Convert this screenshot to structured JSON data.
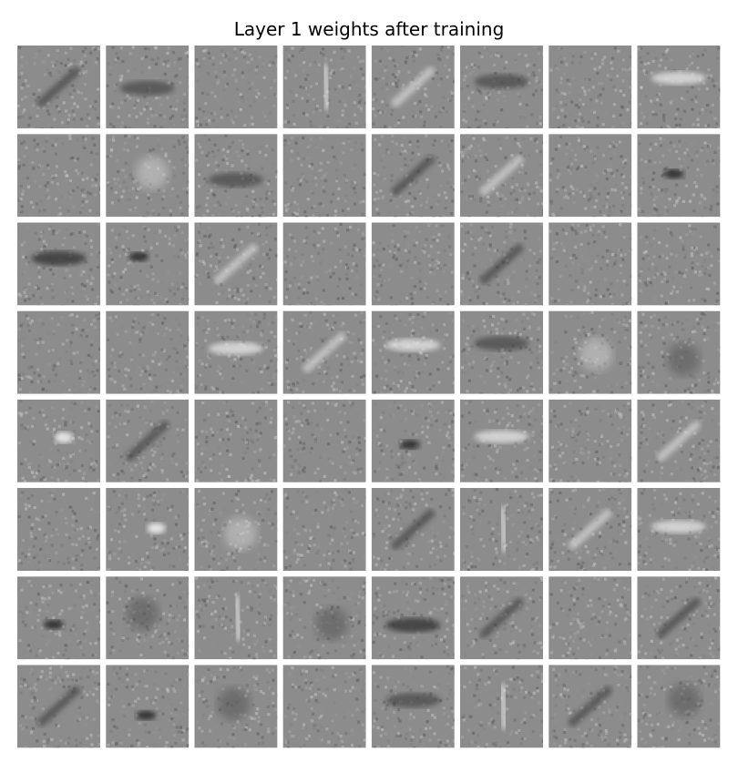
{
  "chart_data": {
    "type": "heatmap",
    "title": "Layer 1 weights after training",
    "rows": 8,
    "cols": 8,
    "tile_resolution": [
      28,
      28
    ],
    "colormap": "gray",
    "axes_visible": false,
    "tiles": [
      {
        "row": 0,
        "col": 0,
        "pattern": "diagonal-stroke"
      },
      {
        "row": 0,
        "col": 1,
        "pattern": "horizontal-band"
      },
      {
        "row": 0,
        "col": 2,
        "pattern": "diffuse"
      },
      {
        "row": 0,
        "col": 3,
        "pattern": "vertical-light-stroke"
      },
      {
        "row": 0,
        "col": 4,
        "pattern": "diagonal-stroke"
      },
      {
        "row": 0,
        "col": 5,
        "pattern": "horizontal-band"
      },
      {
        "row": 0,
        "col": 6,
        "pattern": "diffuse"
      },
      {
        "row": 0,
        "col": 7,
        "pattern": "horizontal-light-band"
      },
      {
        "row": 1,
        "col": 0,
        "pattern": "diffuse"
      },
      {
        "row": 1,
        "col": 1,
        "pattern": "blob"
      },
      {
        "row": 1,
        "col": 2,
        "pattern": "horizontal-band"
      },
      {
        "row": 1,
        "col": 3,
        "pattern": "diffuse"
      },
      {
        "row": 1,
        "col": 4,
        "pattern": "diagonal-stroke"
      },
      {
        "row": 1,
        "col": 5,
        "pattern": "diagonal-stroke"
      },
      {
        "row": 1,
        "col": 6,
        "pattern": "diffuse"
      },
      {
        "row": 1,
        "col": 7,
        "pattern": "dark-spot"
      },
      {
        "row": 2,
        "col": 0,
        "pattern": "horizontal-dark-band"
      },
      {
        "row": 2,
        "col": 1,
        "pattern": "dark-spot"
      },
      {
        "row": 2,
        "col": 2,
        "pattern": "diagonal-stroke"
      },
      {
        "row": 2,
        "col": 3,
        "pattern": "diffuse"
      },
      {
        "row": 2,
        "col": 4,
        "pattern": "diffuse"
      },
      {
        "row": 2,
        "col": 5,
        "pattern": "diagonal-stroke"
      },
      {
        "row": 2,
        "col": 6,
        "pattern": "diffuse"
      },
      {
        "row": 2,
        "col": 7,
        "pattern": "diffuse"
      },
      {
        "row": 3,
        "col": 0,
        "pattern": "diffuse"
      },
      {
        "row": 3,
        "col": 1,
        "pattern": "diffuse"
      },
      {
        "row": 3,
        "col": 2,
        "pattern": "horizontal-light-band"
      },
      {
        "row": 3,
        "col": 3,
        "pattern": "diagonal-stroke"
      },
      {
        "row": 3,
        "col": 4,
        "pattern": "horizontal-light-band"
      },
      {
        "row": 3,
        "col": 5,
        "pattern": "horizontal-band"
      },
      {
        "row": 3,
        "col": 6,
        "pattern": "blob"
      },
      {
        "row": 3,
        "col": 7,
        "pattern": "blob"
      },
      {
        "row": 4,
        "col": 0,
        "pattern": "light-spot"
      },
      {
        "row": 4,
        "col": 1,
        "pattern": "diagonal-stroke"
      },
      {
        "row": 4,
        "col": 2,
        "pattern": "diffuse"
      },
      {
        "row": 4,
        "col": 3,
        "pattern": "diffuse"
      },
      {
        "row": 4,
        "col": 4,
        "pattern": "dark-spot"
      },
      {
        "row": 4,
        "col": 5,
        "pattern": "horizontal-light-band"
      },
      {
        "row": 4,
        "col": 6,
        "pattern": "diffuse"
      },
      {
        "row": 4,
        "col": 7,
        "pattern": "diagonal-stroke"
      },
      {
        "row": 5,
        "col": 0,
        "pattern": "diffuse"
      },
      {
        "row": 5,
        "col": 1,
        "pattern": "light-spot"
      },
      {
        "row": 5,
        "col": 2,
        "pattern": "blob"
      },
      {
        "row": 5,
        "col": 3,
        "pattern": "diffuse"
      },
      {
        "row": 5,
        "col": 4,
        "pattern": "diagonal-stroke"
      },
      {
        "row": 5,
        "col": 5,
        "pattern": "vertical-light-stroke"
      },
      {
        "row": 5,
        "col": 6,
        "pattern": "diagonal-stroke"
      },
      {
        "row": 5,
        "col": 7,
        "pattern": "horizontal-light-band"
      },
      {
        "row": 6,
        "col": 0,
        "pattern": "dark-spot"
      },
      {
        "row": 6,
        "col": 1,
        "pattern": "blob"
      },
      {
        "row": 6,
        "col": 2,
        "pattern": "vertical-light-stroke"
      },
      {
        "row": 6,
        "col": 3,
        "pattern": "blob"
      },
      {
        "row": 6,
        "col": 4,
        "pattern": "horizontal-dark-band"
      },
      {
        "row": 6,
        "col": 5,
        "pattern": "diagonal-stroke"
      },
      {
        "row": 6,
        "col": 6,
        "pattern": "diffuse"
      },
      {
        "row": 6,
        "col": 7,
        "pattern": "diagonal-stroke"
      },
      {
        "row": 7,
        "col": 0,
        "pattern": "diagonal-stroke"
      },
      {
        "row": 7,
        "col": 1,
        "pattern": "dark-spot"
      },
      {
        "row": 7,
        "col": 2,
        "pattern": "blob"
      },
      {
        "row": 7,
        "col": 3,
        "pattern": "diffuse"
      },
      {
        "row": 7,
        "col": 4,
        "pattern": "horizontal-band"
      },
      {
        "row": 7,
        "col": 5,
        "pattern": "vertical-light-stroke"
      },
      {
        "row": 7,
        "col": 6,
        "pattern": "diagonal-stroke"
      },
      {
        "row": 7,
        "col": 7,
        "pattern": "blob"
      }
    ]
  }
}
